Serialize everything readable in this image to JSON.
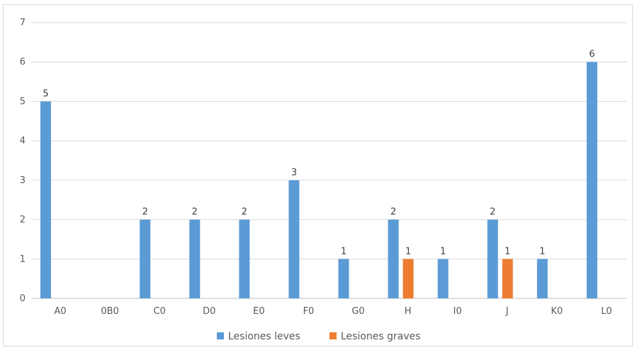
{
  "chart_data": {
    "type": "bar",
    "categories": [
      "A0",
      "0B0",
      "C0",
      "D0",
      "E0",
      "F0",
      "G0",
      "H",
      "I0",
      "J",
      "K0",
      "L0"
    ],
    "series": [
      {
        "name": "Lesiones leves",
        "color": "#5b9bd5",
        "values": [
          5,
          0,
          2,
          2,
          2,
          3,
          1,
          2,
          1,
          2,
          1,
          6
        ]
      },
      {
        "name": "Lesiones graves",
        "color": "#ed7d31",
        "values": [
          0,
          0,
          0,
          0,
          0,
          0,
          0,
          1,
          0,
          1,
          0,
          0
        ]
      }
    ],
    "data_labels": [
      [
        "5",
        "",
        "2",
        "2",
        "2",
        "3",
        "1",
        "2",
        "1",
        "2",
        "1",
        "6"
      ],
      [
        "",
        "",
        "",
        "",
        "",
        "",
        "",
        "1",
        "",
        "1",
        "",
        ""
      ]
    ],
    "yticks": [
      "0",
      "1",
      "2",
      "3",
      "4",
      "5",
      "6",
      "7"
    ],
    "ylim": [
      0,
      7
    ],
    "grid": true,
    "legend_position": "bottom",
    "title": "",
    "xlabel": "",
    "ylabel": ""
  }
}
